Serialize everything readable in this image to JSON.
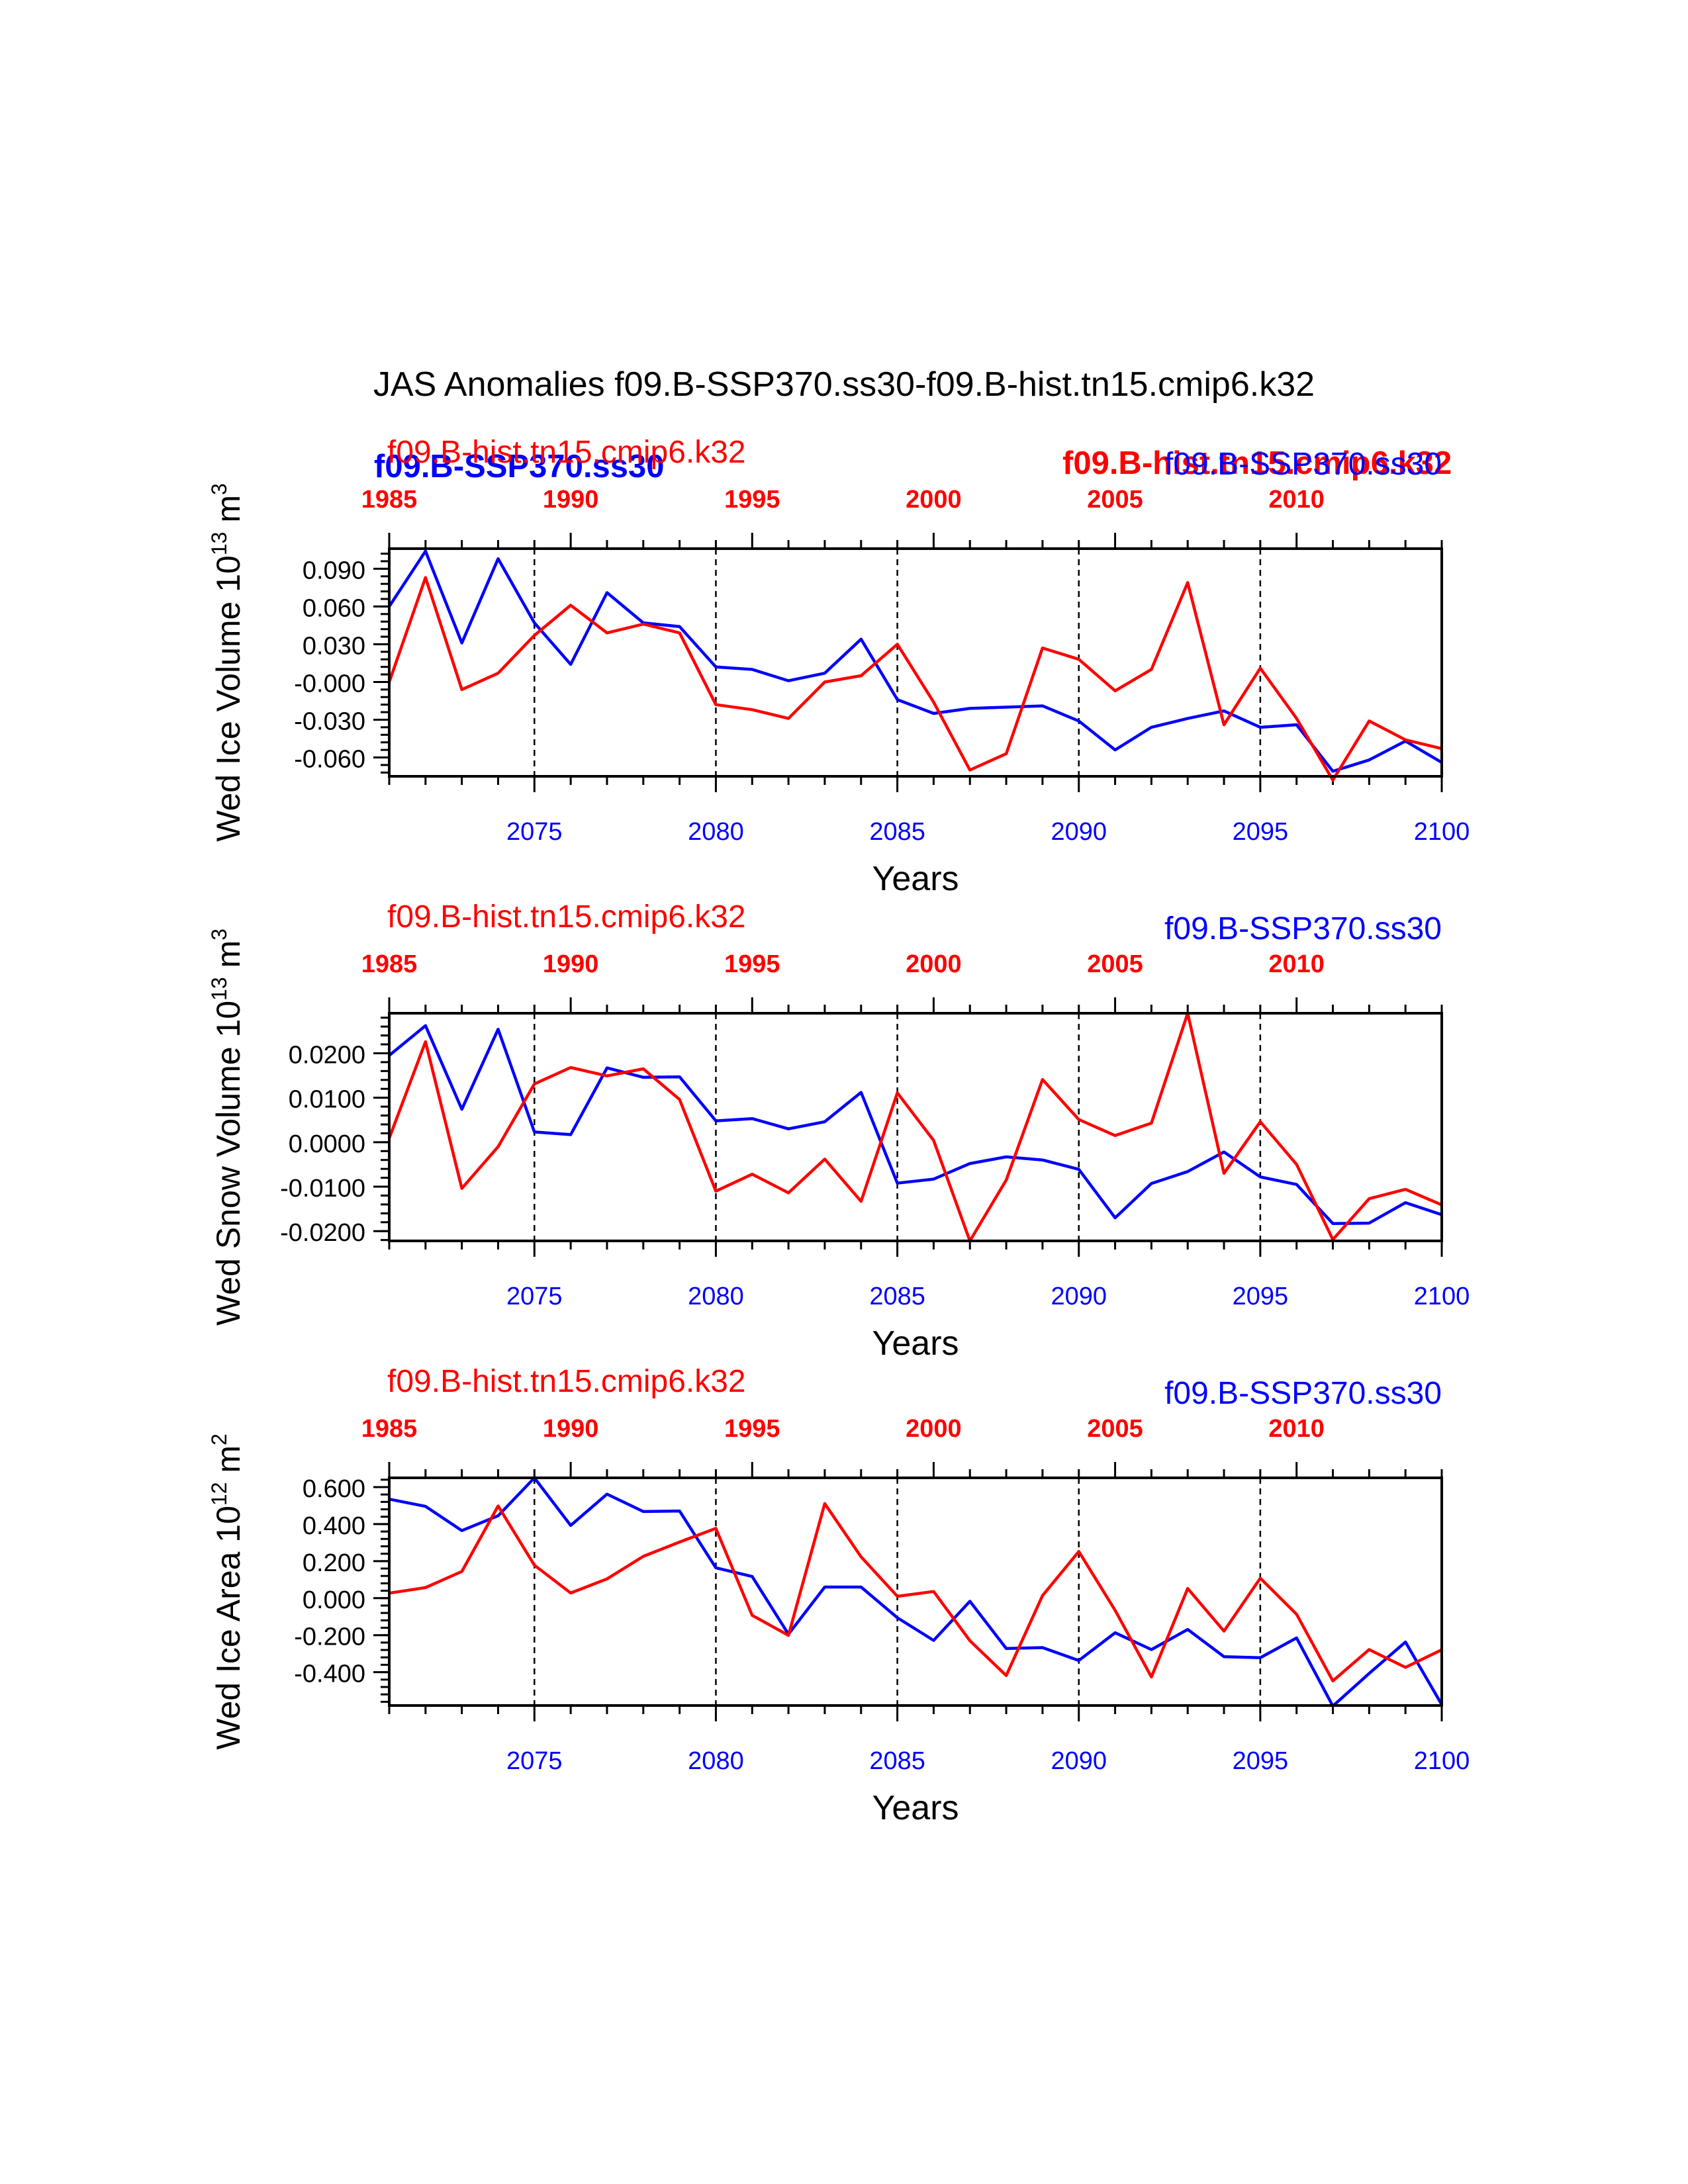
{
  "title": "JAS Anomalies f09.B-SSP370.ss30-f09.B-hist.tn15.cmip6.k32",
  "legend": {
    "hist_label": "f09.B-hist.tn15.cmip6.k32",
    "ssp_label": "f09.B-SSP370.ss30",
    "hist_bold_label": "f09.B-hist.tn15.cmip6.k32",
    "ssp_bold_label": "f09.B-SSP370.ss30"
  },
  "colors": {
    "hist": "#ff0000",
    "ssp": "#0000ff",
    "axis": "#000000",
    "background": "#ffffff"
  },
  "chart_data": [
    {
      "type": "line",
      "ylabel": "Wed Ice Volume 10^13 m^3",
      "ylabel_main": "Wed Ice Volume 10",
      "ylabel_exp": "13",
      "ylabel_unit": "m",
      "ylabel_unit_exp": "3",
      "xlabel": "Years",
      "x_bottom": {
        "range": [
          2071,
          2100
        ],
        "ticks": [
          2075,
          2080,
          2085,
          2090,
          2095,
          2100
        ],
        "color": "#0000ff"
      },
      "x_top": {
        "range": [
          1985,
          2014
        ],
        "ticks": [
          1985,
          1990,
          1995,
          2000,
          2005,
          2010
        ],
        "color": "#ff0000"
      },
      "ylim": [
        -0.075,
        0.106
      ],
      "yticks": [
        0.09,
        0.06,
        0.03,
        -0.0,
        -0.03,
        -0.06
      ],
      "ytick_labels": [
        "0.090",
        "0.060",
        "0.030",
        "-0.000",
        "-0.030",
        "-0.060"
      ],
      "vlines": [
        2075,
        2080,
        2085,
        2090,
        2095
      ],
      "series": [
        {
          "name": "f09.B-SSP370.ss30",
          "axis": "bottom",
          "color": "#0000ff",
          "x": [
            2071,
            2072,
            2073,
            2074,
            2075,
            2076,
            2077,
            2078,
            2079,
            2080,
            2081,
            2082,
            2083,
            2084,
            2085,
            2086,
            2087,
            2088,
            2089,
            2090,
            2091,
            2092,
            2093,
            2094,
            2095,
            2096,
            2097,
            2098,
            2099,
            2100
          ],
          "values": [
            0.06,
            0.104,
            0.031,
            0.098,
            0.047,
            0.014,
            0.071,
            0.047,
            0.044,
            0.012,
            0.01,
            0.001,
            0.007,
            0.034,
            -0.014,
            -0.025,
            -0.021,
            -0.02,
            -0.019,
            -0.031,
            -0.054,
            -0.036,
            -0.029,
            -0.023,
            -0.036,
            -0.034,
            -0.071,
            -0.062,
            -0.047,
            -0.064
          ]
        },
        {
          "name": "f09.B-hist.tn15.cmip6.k32",
          "axis": "top",
          "color": "#ff0000",
          "x": [
            1985,
            1986,
            1987,
            1988,
            1989,
            1990,
            1991,
            1992,
            1993,
            1994,
            1995,
            1996,
            1997,
            1998,
            1999,
            2000,
            2001,
            2002,
            2003,
            2004,
            2005,
            2006,
            2007,
            2008,
            2009,
            2010,
            2011,
            2012,
            2013,
            2014
          ],
          "values": [
            -0.0,
            0.083,
            -0.006,
            0.007,
            0.037,
            0.061,
            0.039,
            0.046,
            0.039,
            -0.018,
            -0.022,
            -0.029,
            0.0,
            0.005,
            0.03,
            -0.016,
            -0.07,
            -0.057,
            0.027,
            0.018,
            -0.007,
            0.01,
            0.079,
            -0.034,
            0.011,
            -0.029,
            -0.078,
            -0.031,
            -0.046,
            -0.053
          ]
        }
      ]
    },
    {
      "type": "line",
      "ylabel": "Wed Snow Volume 10^13 m^3",
      "ylabel_main": "Wed Snow Volume 10",
      "ylabel_exp": "13",
      "ylabel_unit": "m",
      "ylabel_unit_exp": "3",
      "xlabel": "Years",
      "x_bottom": {
        "range": [
          2071,
          2100
        ],
        "ticks": [
          2075,
          2080,
          2085,
          2090,
          2095,
          2100
        ],
        "color": "#0000ff"
      },
      "x_top": {
        "range": [
          1985,
          2014
        ],
        "ticks": [
          1985,
          1990,
          1995,
          2000,
          2005,
          2010
        ],
        "color": "#ff0000"
      },
      "ylim": [
        -0.0222,
        0.029
      ],
      "yticks": [
        0.02,
        0.01,
        0.0,
        -0.01,
        -0.02
      ],
      "ytick_labels": [
        "0.0200",
        "0.0100",
        "0.0000",
        "-0.0100",
        "-0.0200"
      ],
      "vlines": [
        2075,
        2080,
        2085,
        2090,
        2095
      ],
      "series": [
        {
          "name": "f09.B-SSP370.ss30",
          "axis": "bottom",
          "color": "#0000ff",
          "x": [
            2071,
            2072,
            2073,
            2074,
            2075,
            2076,
            2077,
            2078,
            2079,
            2080,
            2081,
            2082,
            2083,
            2084,
            2085,
            2086,
            2087,
            2088,
            2089,
            2090,
            2091,
            2092,
            2093,
            2094,
            2095,
            2096,
            2097,
            2098,
            2099,
            2100
          ],
          "values": [
            0.0195,
            0.0262,
            0.0074,
            0.0254,
            0.0023,
            0.0017,
            0.0167,
            0.0146,
            0.0147,
            0.0048,
            0.0053,
            0.003,
            0.0046,
            0.0112,
            -0.0092,
            -0.0083,
            -0.0048,
            -0.0033,
            -0.004,
            -0.0061,
            -0.017,
            -0.0093,
            -0.0066,
            -0.0022,
            -0.0078,
            -0.0095,
            -0.0183,
            -0.0182,
            -0.0136,
            -0.0163
          ]
        },
        {
          "name": "f09.B-hist.tn15.cmip6.k32",
          "axis": "top",
          "color": "#ff0000",
          "x": [
            1985,
            1986,
            1987,
            1988,
            1989,
            1990,
            1991,
            1992,
            1993,
            1994,
            1995,
            1996,
            1997,
            1998,
            1999,
            2000,
            2001,
            2002,
            2003,
            2004,
            2005,
            2006,
            2007,
            2008,
            2009,
            2010,
            2011,
            2012,
            2013,
            2014
          ],
          "values": [
            0.0009,
            0.0226,
            -0.0104,
            -0.001,
            0.0131,
            0.0168,
            0.0149,
            0.0165,
            0.0096,
            -0.011,
            -0.0072,
            -0.0114,
            -0.0038,
            -0.0133,
            0.0111,
            0.0004,
            -0.0222,
            -0.0085,
            0.0141,
            0.0051,
            0.0015,
            0.0043,
            0.029,
            -0.007,
            0.0046,
            -0.005,
            -0.0219,
            -0.0127,
            -0.0106,
            -0.0141
          ]
        }
      ]
    },
    {
      "type": "line",
      "ylabel": "Wed Ice Area 10^12 m^2",
      "ylabel_main": "Wed Ice Area 10",
      "ylabel_exp": "12",
      "ylabel_unit": "m",
      "ylabel_unit_exp": "2",
      "xlabel": "Years",
      "x_bottom": {
        "range": [
          2071,
          2100
        ],
        "ticks": [
          2075,
          2080,
          2085,
          2090,
          2095,
          2100
        ],
        "color": "#0000ff"
      },
      "x_top": {
        "range": [
          1985,
          2014
        ],
        "ticks": [
          1985,
          1990,
          1995,
          2000,
          2005,
          2010
        ],
        "color": "#ff0000"
      },
      "ylim": [
        -0.58,
        0.65
      ],
      "yticks": [
        0.6,
        0.4,
        0.2,
        0.0,
        -0.2,
        -0.4
      ],
      "ytick_labels": [
        "0.600",
        "0.400",
        "0.200",
        "0.000",
        "-0.200",
        "-0.400"
      ],
      "vlines": [
        2075,
        2080,
        2085,
        2090,
        2095
      ],
      "series": [
        {
          "name": "f09.B-SSP370.ss30",
          "axis": "bottom",
          "color": "#0000ff",
          "x": [
            2071,
            2072,
            2073,
            2074,
            2075,
            2076,
            2077,
            2078,
            2079,
            2080,
            2081,
            2082,
            2083,
            2084,
            2085,
            2086,
            2087,
            2088,
            2089,
            2090,
            2091,
            2092,
            2093,
            2094,
            2095,
            2096,
            2097,
            2098,
            2099,
            2100
          ],
          "values": [
            0.535,
            0.496,
            0.365,
            0.445,
            0.65,
            0.393,
            0.562,
            0.468,
            0.471,
            0.164,
            0.117,
            -0.195,
            0.06,
            0.06,
            -0.106,
            -0.228,
            -0.017,
            -0.272,
            -0.267,
            -0.337,
            -0.187,
            -0.278,
            -0.169,
            -0.316,
            -0.322,
            -0.215,
            -0.583,
            -0.407,
            -0.237,
            -0.575
          ]
        },
        {
          "name": "f09.B-hist.tn15.cmip6.k32",
          "axis": "top",
          "color": "#ff0000",
          "x": [
            1985,
            1986,
            1987,
            1988,
            1989,
            1990,
            1991,
            1992,
            1993,
            1994,
            1995,
            1996,
            1997,
            1998,
            1999,
            2000,
            2001,
            2002,
            2003,
            2004,
            2005,
            2006,
            2007,
            2008,
            2009,
            2010,
            2011,
            2012,
            2013,
            2014
          ],
          "values": [
            0.027,
            0.057,
            0.144,
            0.498,
            0.178,
            0.028,
            0.104,
            0.226,
            0.303,
            0.377,
            -0.093,
            -0.201,
            0.511,
            0.223,
            0.01,
            0.036,
            -0.23,
            -0.418,
            0.014,
            0.252,
            -0.066,
            -0.426,
            0.052,
            -0.178,
            0.108,
            -0.087,
            -0.447,
            -0.278,
            -0.374,
            -0.279
          ]
        }
      ]
    }
  ]
}
